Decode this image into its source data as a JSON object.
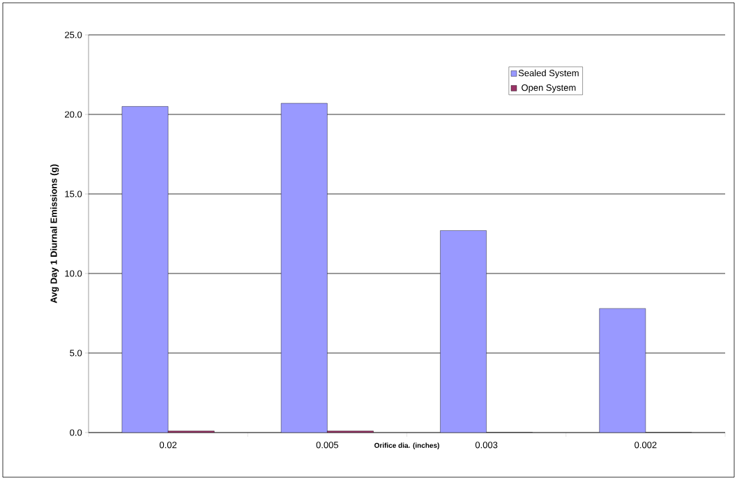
{
  "chart_data": {
    "type": "bar",
    "xlabel": "Orifice dia. (inches)",
    "ylabel": "Avg Day 1 Diurnal Emissions (g)",
    "categories": [
      "0.02",
      "0.005",
      "0.003",
      "0.002"
    ],
    "series": [
      {
        "name": "Sealed System",
        "color": "#9999ff",
        "values": [
          20.5,
          20.7,
          12.7,
          7.8
        ]
      },
      {
        "name": "Open System",
        "color": "#993366",
        "values": [
          0.1,
          0.1,
          0.0,
          0.0
        ]
      }
    ],
    "ylim": [
      0,
      25
    ],
    "yticks": [
      {
        "value": 0,
        "label": "0.0"
      },
      {
        "value": 5,
        "label": "5.0"
      },
      {
        "value": 10,
        "label": "10.0"
      },
      {
        "value": 15,
        "label": "15.0"
      },
      {
        "value": 20,
        "label": "20.0"
      },
      {
        "value": 25,
        "label": "25.0"
      }
    ],
    "grid": "y",
    "legend": "top right"
  }
}
